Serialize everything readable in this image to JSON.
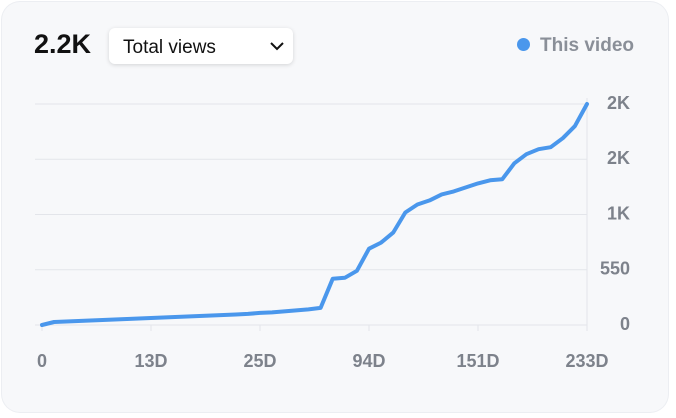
{
  "headline": "2.2K",
  "dropdown": {
    "label": "Total views"
  },
  "chart_data": {
    "type": "line",
    "categories": [
      "0",
      null,
      null,
      null,
      null,
      null,
      null,
      null,
      null,
      "13D",
      null,
      null,
      null,
      null,
      null,
      null,
      null,
      null,
      "25D",
      null,
      null,
      null,
      null,
      null,
      null,
      null,
      null,
      "94D",
      null,
      null,
      null,
      null,
      null,
      null,
      null,
      null,
      "151D",
      null,
      null,
      null,
      null,
      null,
      null,
      null,
      null,
      "233D"
    ],
    "series": [
      {
        "name": "This video",
        "color": "#4a97ec",
        "values": [
          0,
          30,
          35,
          40,
          45,
          50,
          55,
          60,
          65,
          70,
          75,
          80,
          85,
          90,
          95,
          100,
          105,
          110,
          120,
          125,
          135,
          145,
          155,
          170,
          460,
          470,
          540,
          760,
          820,
          920,
          1120,
          1200,
          1240,
          1300,
          1330,
          1370,
          1410,
          1440,
          1450,
          1610,
          1700,
          1750,
          1770,
          1860,
          1980,
          2200
        ]
      }
    ],
    "ylim": [
      0,
      2200
    ],
    "yticks": [
      0,
      550,
      {
        "value": 1100,
        "label": "1K"
      },
      {
        "value": 1650,
        "label": "2K"
      },
      {
        "value": 2200,
        "label": "2K"
      }
    ],
    "grid": true,
    "legend": "top-right"
  }
}
